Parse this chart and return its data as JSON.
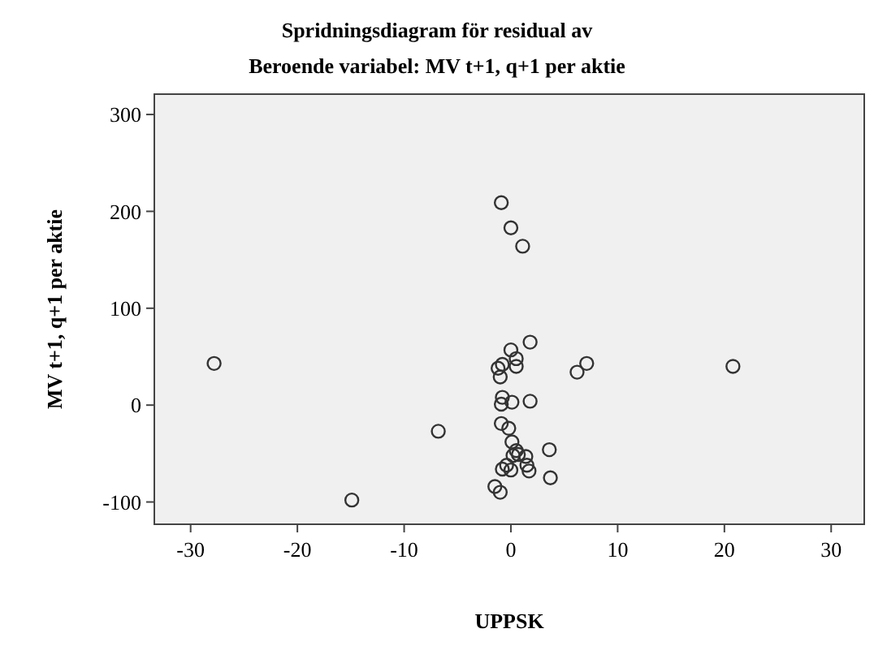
{
  "chart_data": {
    "type": "scatter",
    "title": "Spridningsdiagram för residual av",
    "subtitle": "Beroende variabel: MV t+1, q+1 per aktie",
    "xlabel": "UPPSK",
    "ylabel": "MV t+1, q+1 per aktie",
    "x": [
      -27.8,
      -0.9,
      0,
      1.1,
      1.8,
      0,
      0.5,
      0.5,
      -0.8,
      -1.2,
      -1,
      6.2,
      7.1,
      20.8,
      -0.8,
      -0.9,
      0.1,
      1.8,
      -0.9,
      -0.2,
      -6.8,
      0.1,
      3.6,
      0.5,
      0.7,
      0.2,
      1.4,
      1.5,
      -0.4,
      -0.8,
      0,
      1.7,
      3.7,
      -1.5,
      -1,
      -14.9
    ],
    "values": [
      43,
      209,
      183,
      164,
      65,
      57,
      48,
      40,
      42,
      38,
      29,
      34,
      43,
      40,
      8,
      1,
      3,
      4,
      -19,
      -24,
      -27,
      -38,
      -46,
      -47,
      -51,
      -52,
      -53,
      -62,
      -62,
      -66,
      -67,
      -68,
      -75,
      -84,
      -90,
      -98
    ],
    "color": "#333333",
    "marker": "circle",
    "xlim": [
      -33.4,
      33.1
    ],
    "ylim": [
      -123,
      321
    ],
    "xticks": [
      -30,
      -20,
      -10,
      0,
      10,
      20,
      30
    ],
    "yticks": [
      -100,
      0,
      100,
      200,
      300
    ],
    "grid": false
  }
}
